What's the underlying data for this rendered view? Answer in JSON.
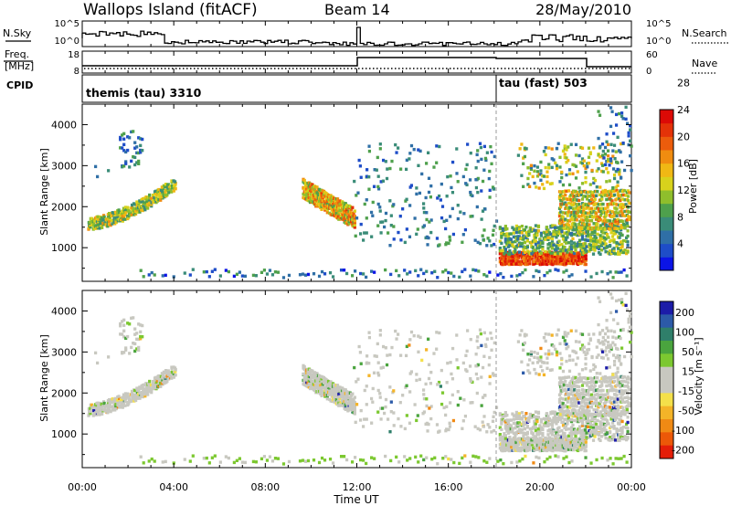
{
  "header": {
    "site": "Wallops Island (fitACF)",
    "beam": "Beam 14",
    "date": "28/May/2010"
  },
  "nsky_panel": {
    "label": "N.Sky",
    "right_label": "N.Search",
    "left_ticks": [
      "10^5",
      "10^0"
    ],
    "right_ticks": [
      "10^5",
      "10^0"
    ]
  },
  "freq_panel": {
    "label_line1": "Freq.",
    "label_line2": "[MHz]",
    "right_label": "Nave",
    "left_ticks": [
      "18",
      "8"
    ],
    "right_ticks": [
      "60",
      "0"
    ]
  },
  "cpid_panel": {
    "label": "CPID",
    "programs": [
      {
        "name": "themis (tau) 3310",
        "start_h": 0
      },
      {
        "name": "tau (fast) 503",
        "start_h": 18
      }
    ]
  },
  "x_axis": {
    "title": "Time UT",
    "tick_labels": [
      "00:00",
      "04:00",
      "08:00",
      "12:00",
      "16:00",
      "20:00",
      "00:00"
    ]
  },
  "chart_data": [
    {
      "type": "heatmap",
      "name": "power",
      "xlabel": "Time UT",
      "ylabel": "Slant Range [km]",
      "xlim": [
        0,
        24
      ],
      "ylim": [
        180,
        4500
      ],
      "y_ticks": [
        "1000",
        "2000",
        "3000",
        "4000"
      ],
      "colorbar": {
        "label": "Power [dB]",
        "ticks": [
          "4",
          "8",
          "12",
          "16",
          "20",
          "24",
          "28"
        ],
        "colors": [
          "#0b14e6",
          "#1e4dc8",
          "#2f6fa6",
          "#3a8c78",
          "#4ea04c",
          "#8fbe2c",
          "#d8d21c",
          "#f0b814",
          "#f08c10",
          "#ec5c0c",
          "#e43208",
          "#dc0a06"
        ]
      },
      "echo_regions": [
        {
          "t": [
            0.0,
            4.0
          ],
          "r": [
            1350,
            2600
          ],
          "level": "mixed",
          "desc": "arc"
        },
        {
          "t": [
            1.5,
            2.6
          ],
          "r": [
            2800,
            3900
          ],
          "level": "low"
        },
        {
          "t": [
            9.6,
            11.9
          ],
          "r": [
            1300,
            2300
          ],
          "level": "high"
        },
        {
          "t": [
            18.2,
            22.0
          ],
          "r": [
            550,
            900
          ],
          "level": "peak"
        },
        {
          "t": [
            20.8,
            23.9
          ],
          "r": [
            1400,
            2500
          ],
          "level": "high"
        },
        {
          "t": [
            19.0,
            23.5
          ],
          "r": [
            2400,
            3500
          ],
          "level": "mixed"
        },
        {
          "t": [
            2.5,
            10.0
          ],
          "r": [
            200,
            450
          ],
          "level": "low"
        }
      ]
    },
    {
      "type": "heatmap",
      "name": "velocity",
      "xlabel": "Time UT",
      "ylabel": "Slant Range [km]",
      "xlim": [
        0,
        24
      ],
      "ylim": [
        180,
        4500
      ],
      "y_ticks": [
        "1000",
        "2000",
        "3000",
        "4000"
      ],
      "colorbar": {
        "label": "Velocity [m s⁻¹]",
        "ticks": [
          "200",
          "100",
          "50",
          "15",
          "-15",
          "-50",
          "-100",
          "-200"
        ],
        "colors": [
          "#1c1ca8",
          "#2c5aa8",
          "#2f7f6a",
          "#4aa43e",
          "#7cc830",
          "#c8c8c0",
          "#c8c8c0",
          "#f4e04a",
          "#f4b428",
          "#f08a14",
          "#ec5808",
          "#e41e08"
        ]
      }
    }
  ]
}
